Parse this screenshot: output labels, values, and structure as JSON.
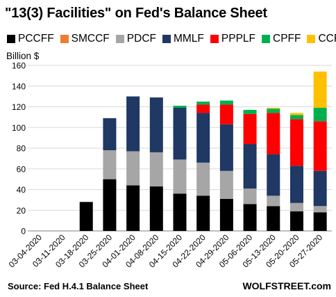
{
  "title": "\"13(3) Facilities\"  on Fed's Balance Sheet",
  "source": "Source: Fed H.4.1 Balance Sheet",
  "brand": "WOLFSTREET.com",
  "chart_data": {
    "type": "bar",
    "stacked": true,
    "ylabel": "Billion $",
    "ylim": [
      0,
      160
    ],
    "yticks": [
      0,
      20,
      40,
      60,
      80,
      100,
      120,
      140,
      160
    ],
    "grid": true,
    "legend_position": "top",
    "categories": [
      "03-04-2020",
      "03-11-2020",
      "03-18-2020",
      "03-25-2020",
      "04-01-2020",
      "04-08-2020",
      "04-15-2020",
      "04-22-2020",
      "04-29-2020",
      "05-06-2020",
      "05-13-2020",
      "05-20-2020",
      "05-27-2020"
    ],
    "series": [
      {
        "name": "PCCFF",
        "color": "#000000",
        "values": [
          0,
          0,
          28,
          50,
          44,
          43,
          36,
          34,
          31,
          26,
          24,
          19,
          18
        ]
      },
      {
        "name": "SMCCF",
        "color": "#ed7d31",
        "values": [
          0,
          0,
          0,
          0,
          0,
          0,
          0,
          0,
          0,
          0,
          0,
          0,
          0
        ]
      },
      {
        "name": "PDCF",
        "color": "#a6a6a6",
        "values": [
          0,
          0,
          0,
          28,
          33,
          33,
          33,
          32,
          27,
          15,
          10,
          8,
          6
        ]
      },
      {
        "name": "MMLF",
        "color": "#1f3864",
        "values": [
          0,
          0,
          0,
          31,
          53,
          53,
          50,
          48,
          45,
          43,
          40,
          36,
          34
        ]
      },
      {
        "name": "PPPLF",
        "color": "#ff0000",
        "values": [
          0,
          0,
          0,
          0,
          0,
          0,
          0,
          8,
          19,
          29,
          40,
          45,
          48
        ]
      },
      {
        "name": "CPFF",
        "color": "#00b050",
        "values": [
          0,
          0,
          0,
          0,
          0,
          0,
          2,
          3,
          4,
          4,
          4,
          4,
          13
        ]
      },
      {
        "name": "CCF",
        "color": "#ffc000",
        "values": [
          0,
          0,
          0,
          0,
          0,
          0,
          0,
          0,
          0,
          0,
          1,
          2,
          35
        ]
      }
    ]
  }
}
